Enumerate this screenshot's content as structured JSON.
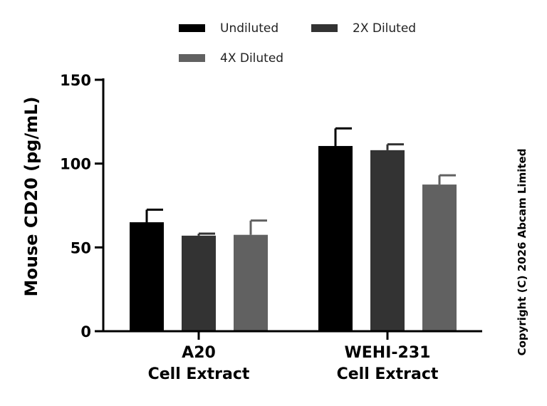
{
  "chart_data": {
    "type": "bar",
    "ylabel": "Mouse CD20 (pg/mL)",
    "xlabel": "",
    "ylim": [
      0,
      150
    ],
    "yticks": [
      0,
      50,
      100,
      150
    ],
    "categories": [
      [
        "A20",
        "Cell Extract"
      ],
      [
        "WEHI-231",
        "Cell Extract"
      ]
    ],
    "series": [
      {
        "name": "Undiluted",
        "color": "#000000",
        "values": [
          65,
          110.5
        ],
        "errors": [
          7.5,
          10.5
        ]
      },
      {
        "name": "2X Diluted",
        "color": "#333333",
        "values": [
          57,
          108
        ],
        "errors": [
          1.2,
          3.5
        ]
      },
      {
        "name": "4X Diluted",
        "color": "#616161",
        "values": [
          57.5,
          87.5
        ],
        "errors": [
          8.5,
          5.5
        ]
      }
    ],
    "legend_position": "top",
    "grid": false
  },
  "copyright": "Copyright (C) 2026 Abcam Limited"
}
